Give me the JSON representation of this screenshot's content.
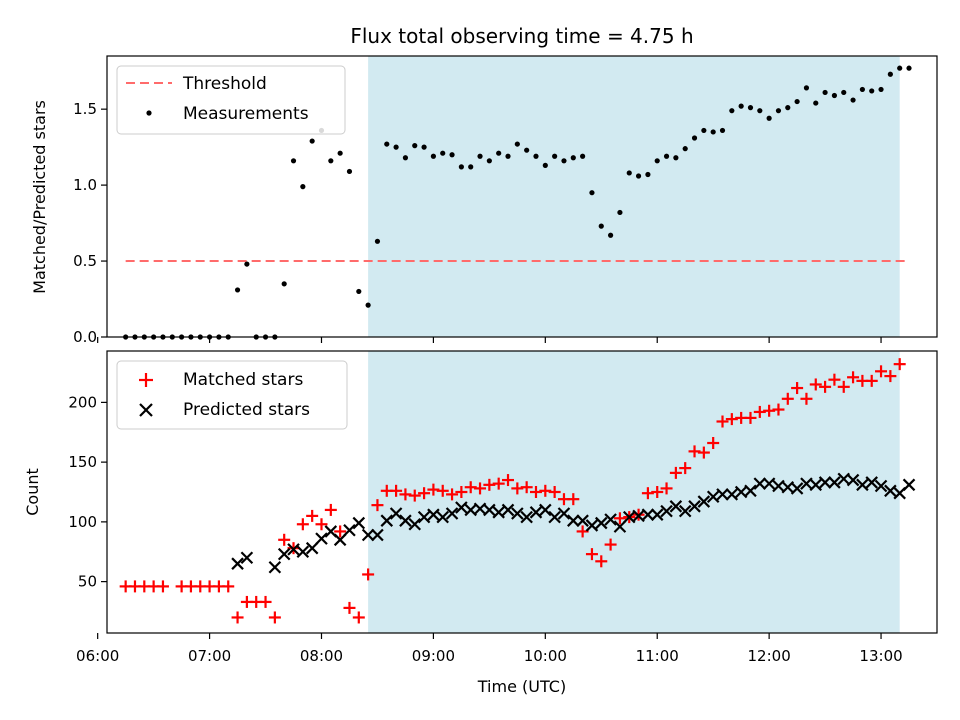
{
  "chart_data": [
    {
      "type": "scatter",
      "title": "Flux total observing time = 4.75 h",
      "xlabel": "",
      "ylabel": "Matched/Predicted stars",
      "xlim": [
        "06:05",
        "13:30"
      ],
      "ylim": [
        0,
        1.85
      ],
      "yticks": [
        0.0,
        0.5,
        1.0,
        1.5
      ],
      "ytick_labels": [
        "0.0",
        "0.5",
        "1.0",
        "1.5"
      ],
      "shaded_region": {
        "x": [
          "08:25",
          "13:10"
        ],
        "color": "#add8e6"
      },
      "legend": {
        "placement": "top-left",
        "entries": [
          "Threshold",
          "Measurements"
        ]
      },
      "threshold": {
        "name": "Threshold",
        "value": 0.5,
        "x": [
          "06:15",
          "13:15"
        ],
        "color": "#ff6b6b",
        "style": "dashed"
      },
      "series": [
        {
          "name": "Measurements",
          "color": "#000000",
          "points": [
            [
              "06:15",
              0.0
            ],
            [
              "06:20",
              0.0
            ],
            [
              "06:25",
              0.0
            ],
            [
              "06:30",
              0.0
            ],
            [
              "06:35",
              0.0
            ],
            [
              "06:40",
              0.0
            ],
            [
              "06:45",
              0.0
            ],
            [
              "06:50",
              0.0
            ],
            [
              "06:55",
              0.0
            ],
            [
              "07:00",
              0.0
            ],
            [
              "07:05",
              0.0
            ],
            [
              "07:10",
              0.0
            ],
            [
              "07:15",
              0.31
            ],
            [
              "07:20",
              0.48
            ],
            [
              "07:25",
              0.0
            ],
            [
              "07:30",
              0.0
            ],
            [
              "07:35",
              0.0
            ],
            [
              "07:40",
              0.35
            ],
            [
              "07:45",
              1.16
            ],
            [
              "07:50",
              0.99
            ],
            [
              "07:55",
              1.29
            ],
            [
              "08:00",
              1.36
            ],
            [
              "08:05",
              1.16
            ],
            [
              "08:10",
              1.21
            ],
            [
              "08:15",
              1.09
            ],
            [
              "08:20",
              0.3
            ],
            [
              "08:25",
              0.21
            ],
            [
              "08:30",
              0.63
            ],
            [
              "08:35",
              1.27
            ],
            [
              "08:40",
              1.25
            ],
            [
              "08:45",
              1.18
            ],
            [
              "08:50",
              1.26
            ],
            [
              "08:55",
              1.25
            ],
            [
              "09:00",
              1.19
            ],
            [
              "09:05",
              1.21
            ],
            [
              "09:10",
              1.2
            ],
            [
              "09:15",
              1.12
            ],
            [
              "09:20",
              1.12
            ],
            [
              "09:25",
              1.19
            ],
            [
              "09:30",
              1.16
            ],
            [
              "09:35",
              1.21
            ],
            [
              "09:40",
              1.19
            ],
            [
              "09:45",
              1.27
            ],
            [
              "09:50",
              1.23
            ],
            [
              "09:55",
              1.19
            ],
            [
              "10:00",
              1.13
            ],
            [
              "10:05",
              1.19
            ],
            [
              "10:10",
              1.16
            ],
            [
              "10:15",
              1.18
            ],
            [
              "10:20",
              1.19
            ],
            [
              "10:25",
              0.95
            ],
            [
              "10:30",
              0.73
            ],
            [
              "10:35",
              0.67
            ],
            [
              "10:40",
              0.82
            ],
            [
              "10:45",
              1.08
            ],
            [
              "10:50",
              1.06
            ],
            [
              "10:55",
              1.07
            ],
            [
              "11:00",
              1.16
            ],
            [
              "11:05",
              1.19
            ],
            [
              "11:10",
              1.18
            ],
            [
              "11:15",
              1.24
            ],
            [
              "11:20",
              1.31
            ],
            [
              "11:25",
              1.36
            ],
            [
              "11:30",
              1.35
            ],
            [
              "11:35",
              1.36
            ],
            [
              "11:40",
              1.49
            ],
            [
              "11:45",
              1.52
            ],
            [
              "11:50",
              1.51
            ],
            [
              "11:55",
              1.49
            ],
            [
              "12:00",
              1.44
            ],
            [
              "12:05",
              1.49
            ],
            [
              "12:10",
              1.51
            ],
            [
              "12:15",
              1.55
            ],
            [
              "12:20",
              1.64
            ],
            [
              "12:25",
              1.54
            ],
            [
              "12:30",
              1.61
            ],
            [
              "12:35",
              1.59
            ],
            [
              "12:40",
              1.61
            ],
            [
              "12:45",
              1.56
            ],
            [
              "12:50",
              1.63
            ],
            [
              "12:55",
              1.62
            ],
            [
              "13:00",
              1.63
            ],
            [
              "13:05",
              1.73
            ],
            [
              "13:10",
              1.77
            ],
            [
              "13:15",
              1.77
            ]
          ]
        }
      ]
    },
    {
      "type": "scatter",
      "title": "",
      "xlabel": "Time (UTC)",
      "ylabel": "Count",
      "xlim": [
        "06:05",
        "13:30"
      ],
      "ylim": [
        7,
        243
      ],
      "xticks": [
        "06:00",
        "07:00",
        "08:00",
        "09:00",
        "10:00",
        "11:00",
        "12:00",
        "13:00"
      ],
      "yticks": [
        50,
        100,
        150,
        200
      ],
      "ytick_labels": [
        "50",
        "100",
        "150",
        "200"
      ],
      "shaded_region": {
        "x": [
          "08:25",
          "13:10"
        ],
        "color": "#add8e6"
      },
      "legend": {
        "placement": "top-left",
        "entries": [
          "Matched stars",
          "Predicted stars"
        ]
      },
      "series": [
        {
          "name": "Matched stars",
          "marker": "plus",
          "color": "#ff0000",
          "points": [
            [
              "06:15",
              46
            ],
            [
              "06:20",
              46
            ],
            [
              "06:25",
              46
            ],
            [
              "06:30",
              46
            ],
            [
              "06:35",
              46
            ],
            [
              "06:45",
              46
            ],
            [
              "06:50",
              46
            ],
            [
              "06:55",
              46
            ],
            [
              "07:00",
              46
            ],
            [
              "07:05",
              46
            ],
            [
              "07:10",
              46
            ],
            [
              "07:15",
              20
            ],
            [
              "07:20",
              33
            ],
            [
              "07:25",
              33
            ],
            [
              "07:30",
              33
            ],
            [
              "07:35",
              20
            ],
            [
              "07:40",
              85
            ],
            [
              "07:45",
              78
            ],
            [
              "07:50",
              98
            ],
            [
              "07:55",
              105
            ],
            [
              "08:00",
              98
            ],
            [
              "08:05",
              110
            ],
            [
              "08:10",
              92
            ],
            [
              "08:15",
              28
            ],
            [
              "08:20",
              20
            ],
            [
              "08:25",
              56
            ],
            [
              "08:30",
              114
            ],
            [
              "08:35",
              126
            ],
            [
              "08:40",
              126
            ],
            [
              "08:45",
              123
            ],
            [
              "08:50",
              122
            ],
            [
              "08:55",
              124
            ],
            [
              "09:00",
              127
            ],
            [
              "09:05",
              126
            ],
            [
              "09:10",
              123
            ],
            [
              "09:15",
              125
            ],
            [
              "09:20",
              129
            ],
            [
              "09:25",
              128
            ],
            [
              "09:30",
              131
            ],
            [
              "09:35",
              132
            ],
            [
              "09:40",
              135
            ],
            [
              "09:45",
              128
            ],
            [
              "09:50",
              129
            ],
            [
              "09:55",
              125
            ],
            [
              "10:00",
              126
            ],
            [
              "10:05",
              125
            ],
            [
              "10:10",
              119
            ],
            [
              "10:15",
              119
            ],
            [
              "10:20",
              92
            ],
            [
              "10:25",
              73
            ],
            [
              "10:30",
              67
            ],
            [
              "10:35",
              81
            ],
            [
              "10:40",
              103
            ],
            [
              "10:45",
              104
            ],
            [
              "10:50",
              106
            ],
            [
              "10:55",
              124
            ],
            [
              "11:00",
              125
            ],
            [
              "11:05",
              128
            ],
            [
              "11:10",
              141
            ],
            [
              "11:15",
              145
            ],
            [
              "11:20",
              159
            ],
            [
              "11:25",
              158
            ],
            [
              "11:30",
              166
            ],
            [
              "11:35",
              184
            ],
            [
              "11:40",
              186
            ],
            [
              "11:45",
              187
            ],
            [
              "11:50",
              187
            ],
            [
              "11:55",
              192
            ],
            [
              "12:00",
              193
            ],
            [
              "12:05",
              194
            ],
            [
              "12:10",
              203
            ],
            [
              "12:15",
              212
            ],
            [
              "12:20",
              203
            ],
            [
              "12:25",
              215
            ],
            [
              "12:30",
              213
            ],
            [
              "12:35",
              219
            ],
            [
              "12:40",
              213
            ],
            [
              "12:45",
              221
            ],
            [
              "12:50",
              218
            ],
            [
              "12:55",
              218
            ],
            [
              "13:00",
              226
            ],
            [
              "13:05",
              222
            ],
            [
              "13:10",
              232
            ]
          ]
        },
        {
          "name": "Predicted stars",
          "marker": "x",
          "color": "#000000",
          "points": [
            [
              "07:15",
              65
            ],
            [
              "07:20",
              70
            ],
            [
              "07:35",
              62
            ],
            [
              "07:40",
              73
            ],
            [
              "07:45",
              77
            ],
            [
              "07:50",
              75
            ],
            [
              "07:55",
              78
            ],
            [
              "08:00",
              86
            ],
            [
              "08:05",
              92
            ],
            [
              "08:10",
              85
            ],
            [
              "08:15",
              93
            ],
            [
              "08:20",
              99
            ],
            [
              "08:25",
              89
            ],
            [
              "08:30",
              89
            ],
            [
              "08:35",
              101
            ],
            [
              "08:40",
              107
            ],
            [
              "08:45",
              101
            ],
            [
              "08:50",
              98
            ],
            [
              "08:55",
              104
            ],
            [
              "09:00",
              106
            ],
            [
              "09:05",
              104
            ],
            [
              "09:10",
              107
            ],
            [
              "09:15",
              112
            ],
            [
              "09:20",
              110
            ],
            [
              "09:25",
              111
            ],
            [
              "09:30",
              110
            ],
            [
              "09:35",
              108
            ],
            [
              "09:40",
              110
            ],
            [
              "09:45",
              107
            ],
            [
              "09:50",
              104
            ],
            [
              "09:55",
              108
            ],
            [
              "10:00",
              110
            ],
            [
              "10:05",
              104
            ],
            [
              "10:10",
              107
            ],
            [
              "10:15",
              101
            ],
            [
              "10:20",
              101
            ],
            [
              "10:25",
              97
            ],
            [
              "10:30",
              99
            ],
            [
              "10:35",
              102
            ],
            [
              "10:40",
              96
            ],
            [
              "10:45",
              104
            ],
            [
              "10:50",
              105
            ],
            [
              "10:55",
              106
            ],
            [
              "11:00",
              106
            ],
            [
              "11:05",
              109
            ],
            [
              "11:10",
              113
            ],
            [
              "11:15",
              109
            ],
            [
              "11:20",
              113
            ],
            [
              "11:25",
              117
            ],
            [
              "11:30",
              121
            ],
            [
              "11:35",
              123
            ],
            [
              "11:40",
              123
            ],
            [
              "11:45",
              125
            ],
            [
              "11:50",
              126
            ],
            [
              "11:55",
              132
            ],
            [
              "12:00",
              132
            ],
            [
              "12:05",
              130
            ],
            [
              "12:10",
              129
            ],
            [
              "12:15",
              128
            ],
            [
              "12:20",
              132
            ],
            [
              "12:25",
              131
            ],
            [
              "12:30",
              133
            ],
            [
              "12:35",
              133
            ],
            [
              "12:40",
              136
            ],
            [
              "12:45",
              135
            ],
            [
              "12:50",
              131
            ],
            [
              "12:55",
              133
            ],
            [
              "13:00",
              130
            ],
            [
              "13:05",
              126
            ],
            [
              "13:10",
              124
            ],
            [
              "13:15",
              131
            ]
          ]
        }
      ]
    }
  ]
}
